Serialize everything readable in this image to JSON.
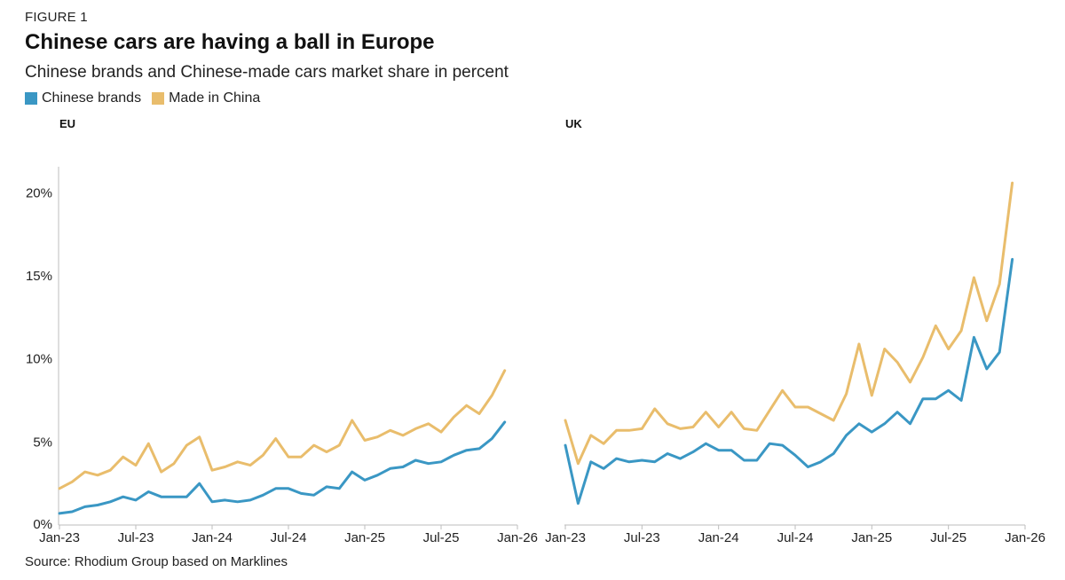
{
  "figure_label": "FIGURE 1",
  "chart_data": {
    "type": "line",
    "title": "Chinese cars are having a ball in Europe",
    "subtitle": "Chinese brands and Chinese-made cars market share in percent",
    "source": "Source: Rhodium Group based on Marklines",
    "colors": {
      "chinese_brands": "#3a97c4",
      "made_in_china": "#e9bd6c"
    },
    "legend": [
      {
        "key": "chinese_brands",
        "name": "Chinese brands"
      },
      {
        "key": "made_in_china",
        "name": "Made in China"
      }
    ],
    "ylim": [
      0,
      22
    ],
    "yticks": [
      {
        "value": 0,
        "label": "0%"
      },
      {
        "value": 5,
        "label": "5%"
      },
      {
        "value": 10,
        "label": "10%"
      },
      {
        "value": 15,
        "label": "15%"
      },
      {
        "value": 20,
        "label": "20%"
      }
    ],
    "xlim": [
      0,
      36
    ],
    "xticks": [
      {
        "value": 0,
        "label": "Jan-23"
      },
      {
        "value": 6,
        "label": "Jul-23"
      },
      {
        "value": 12,
        "label": "Jan-24"
      },
      {
        "value": 18,
        "label": "Jul-24"
      },
      {
        "value": 24,
        "label": "Jan-25"
      },
      {
        "value": 30,
        "label": "Jul-25"
      },
      {
        "value": 36,
        "label": "Jan-26"
      }
    ],
    "panels": [
      {
        "name": "EU",
        "series": [
          {
            "key": "chinese_brands",
            "name": "Chinese brands",
            "values": [
              0.7,
              0.8,
              1.1,
              1.2,
              1.4,
              1.7,
              1.5,
              2.0,
              1.7,
              1.7,
              1.7,
              2.5,
              1.4,
              1.5,
              1.4,
              1.5,
              1.8,
              2.2,
              2.2,
              1.9,
              1.8,
              2.3,
              2.2,
              3.2,
              2.7,
              3.0,
              3.4,
              3.5,
              3.9,
              3.7,
              3.8,
              4.2,
              4.5,
              4.6,
              5.2,
              6.2
            ]
          },
          {
            "key": "made_in_china",
            "name": "Made in China",
            "values": [
              2.2,
              2.6,
              3.2,
              3.0,
              3.3,
              4.1,
              3.6,
              4.9,
              3.2,
              3.7,
              4.8,
              5.3,
              3.3,
              3.5,
              3.8,
              3.6,
              4.2,
              5.2,
              4.1,
              4.1,
              4.8,
              4.4,
              4.8,
              6.3,
              5.1,
              5.3,
              5.7,
              5.4,
              5.8,
              6.1,
              5.6,
              6.5,
              7.2,
              6.7,
              7.8,
              9.3
            ]
          }
        ]
      },
      {
        "name": "UK",
        "series": [
          {
            "key": "chinese_brands",
            "name": "Chinese brands",
            "values": [
              4.8,
              1.3,
              3.8,
              3.4,
              4.0,
              3.8,
              3.9,
              3.8,
              4.3,
              4.0,
              4.4,
              4.9,
              4.5,
              4.5,
              3.9,
              3.9,
              4.9,
              4.8,
              4.2,
              3.5,
              3.8,
              4.3,
              5.4,
              6.1,
              5.6,
              6.1,
              6.8,
              6.1,
              7.6,
              7.6,
              8.1,
              7.5,
              11.3,
              9.4,
              10.4,
              16.0
            ]
          },
          {
            "key": "made_in_china",
            "name": "Made in China",
            "values": [
              6.3,
              3.7,
              5.4,
              4.9,
              5.7,
              5.7,
              5.8,
              7.0,
              6.1,
              5.8,
              5.9,
              6.8,
              5.9,
              6.8,
              5.8,
              5.7,
              6.9,
              8.1,
              7.1,
              7.1,
              6.7,
              6.3,
              7.9,
              10.9,
              7.8,
              10.6,
              9.8,
              8.6,
              10.1,
              12.0,
              10.6,
              11.7,
              14.9,
              12.3,
              14.5,
              20.6
            ]
          }
        ]
      }
    ]
  }
}
